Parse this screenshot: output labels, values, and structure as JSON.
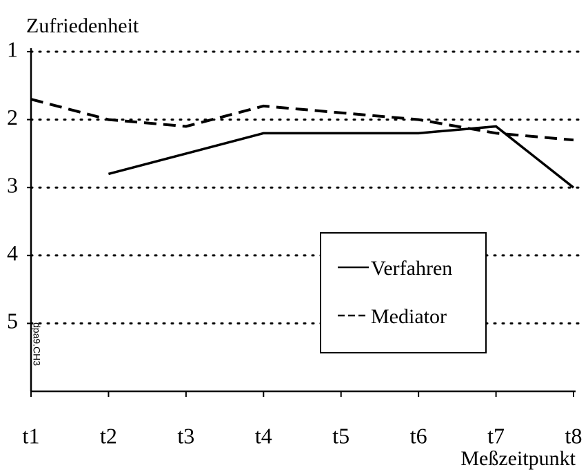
{
  "chart_data": {
    "type": "line",
    "y_label": "Zufriedenheit",
    "x_label": "Meßzeitpunkt",
    "annotation": "dpa9.CH3",
    "categories": [
      "t1",
      "t2",
      "t3",
      "t4",
      "t5",
      "t6",
      "t7",
      "t8"
    ],
    "series": [
      {
        "name": "Verfahren",
        "color": "#000000",
        "style": "solid",
        "values": [
          null,
          2.8,
          2.5,
          2.2,
          2.2,
          2.2,
          2.1,
          3.0
        ]
      },
      {
        "name": "Mediator",
        "color": "#000000",
        "style": "dashed",
        "values": [
          1.7,
          2.0,
          2.1,
          1.8,
          1.9,
          2.0,
          2.2,
          2.3
        ]
      }
    ],
    "ylim": [
      6,
      1
    ],
    "yticks": [
      1,
      2,
      3,
      4,
      5
    ],
    "grid": true
  }
}
